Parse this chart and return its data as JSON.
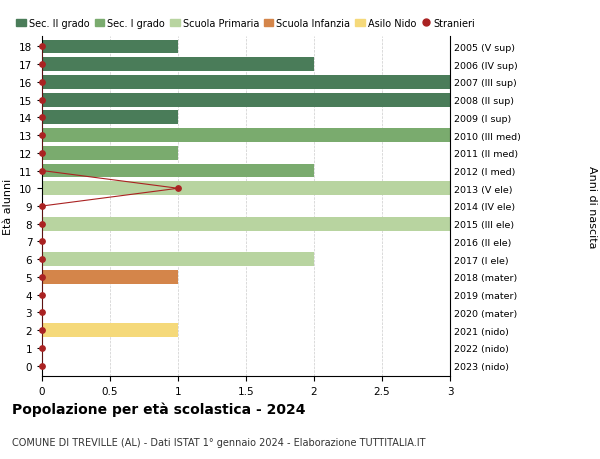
{
  "ages": [
    18,
    17,
    16,
    15,
    14,
    13,
    12,
    11,
    10,
    9,
    8,
    7,
    6,
    5,
    4,
    3,
    2,
    1,
    0
  ],
  "right_labels": [
    "2005 (V sup)",
    "2006 (IV sup)",
    "2007 (III sup)",
    "2008 (II sup)",
    "2009 (I sup)",
    "2010 (III med)",
    "2011 (II med)",
    "2012 (I med)",
    "2013 (V ele)",
    "2014 (IV ele)",
    "2015 (III ele)",
    "2016 (II ele)",
    "2017 (I ele)",
    "2018 (mater)",
    "2019 (mater)",
    "2020 (mater)",
    "2021 (nido)",
    "2022 (nido)",
    "2023 (nido)"
  ],
  "bar_values": [
    1,
    2,
    3,
    3,
    1,
    3,
    1,
    2,
    3,
    0,
    3,
    0,
    2,
    1,
    0,
    0,
    1,
    0,
    0
  ],
  "bar_colors": [
    "#4a7c59",
    "#4a7c59",
    "#4a7c59",
    "#4a7c59",
    "#4a7c59",
    "#7aab6e",
    "#7aab6e",
    "#7aab6e",
    "#b8d4a0",
    "#b8d4a0",
    "#b8d4a0",
    "#b8d4a0",
    "#b8d4a0",
    "#d4854a",
    "#b8d4a0",
    "#b8d4a0",
    "#f5d97a",
    "#b8d4a0",
    "#b8d4a0"
  ],
  "stranieri_x": [
    0,
    0,
    0,
    0,
    0,
    0,
    0,
    0,
    1,
    0,
    0,
    0,
    0,
    0,
    0,
    0,
    0,
    0,
    0
  ],
  "stranieri_color": "#aa2222",
  "legend_entries": [
    {
      "label": "Sec. II grado",
      "color": "#4a7c59"
    },
    {
      "label": "Sec. I grado",
      "color": "#7aab6e"
    },
    {
      "label": "Scuola Primaria",
      "color": "#b8d4a0"
    },
    {
      "label": "Scuola Infanzia",
      "color": "#d4854a"
    },
    {
      "label": "Asilo Nido",
      "color": "#f5d97a"
    },
    {
      "label": "Stranieri",
      "color": "#aa2222"
    }
  ],
  "ylabel_text": "Età alunni",
  "right_ylabel": "Anni di nascita",
  "xlim": [
    0,
    3.0
  ],
  "xticks": [
    0,
    0.5,
    1.0,
    1.5,
    2.0,
    2.5,
    3.0
  ],
  "title": "Popolazione per età scolastica - 2024",
  "subtitle": "COMUNE DI TREVILLE (AL) - Dati ISTAT 1° gennaio 2024 - Elaborazione TUTTITALIA.IT",
  "figsize": [
    6.0,
    4.6
  ],
  "dpi": 100,
  "bg_color": "#ffffff",
  "grid_color": "#cccccc"
}
